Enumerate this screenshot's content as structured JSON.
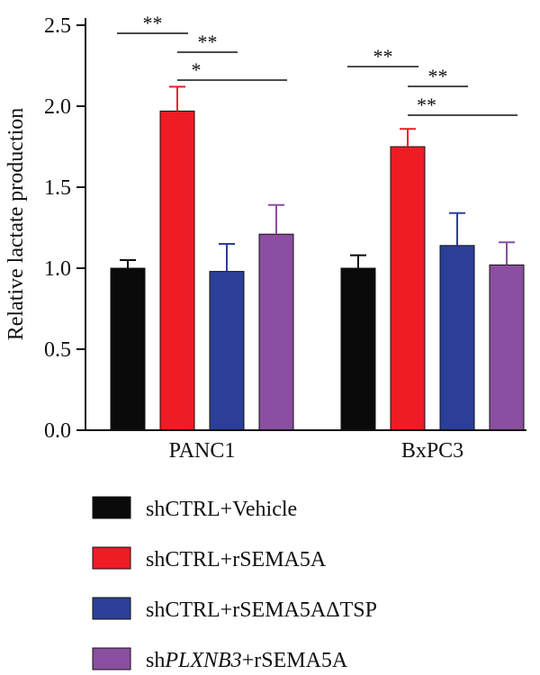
{
  "chart_data": {
    "type": "bar",
    "ylabel": "Relative lactate production",
    "ylim": [
      0,
      2.5
    ],
    "yticks": [
      "0.0",
      "0.5",
      "1.0",
      "1.5",
      "2.0",
      "2.5"
    ],
    "grid": false,
    "legend_position": "bottom",
    "categories": [
      "PANC1",
      "BxPC3"
    ],
    "series": [
      {
        "name": "shCTRL+Vehicle",
        "color": "#0a0a0a",
        "values": [
          1.0,
          1.0
        ],
        "errors": [
          0.05,
          0.08
        ]
      },
      {
        "name": "shCTRL+rSEMA5A",
        "color": "#ee1c25",
        "values": [
          1.97,
          1.75
        ],
        "errors": [
          0.15,
          0.11
        ]
      },
      {
        "name": "shCTRL+rSEMA5AΔTSP",
        "color": "#2b3f98",
        "values": [
          0.98,
          1.14
        ],
        "errors": [
          0.17,
          0.2
        ]
      },
      {
        "name": "shPLXNB3+rSEMA5A",
        "name_parts": [
          "sh",
          "PLXNB3",
          "+rSEMA5A"
        ],
        "color": "#8b4ea0",
        "values": [
          1.21,
          1.02
        ],
        "errors": [
          0.18,
          0.14
        ]
      }
    ],
    "significance": [
      {
        "category": 0,
        "from": 0,
        "to": 1,
        "label": "**"
      },
      {
        "category": 0,
        "from": 1,
        "to": 2,
        "label": "**"
      },
      {
        "category": 0,
        "from": 1,
        "to": 3,
        "label": "*"
      },
      {
        "category": 1,
        "from": 0,
        "to": 1,
        "label": "**"
      },
      {
        "category": 1,
        "from": 1,
        "to": 2,
        "label": "**"
      },
      {
        "category": 1,
        "from": 1,
        "to": 3,
        "label": "**"
      }
    ]
  }
}
